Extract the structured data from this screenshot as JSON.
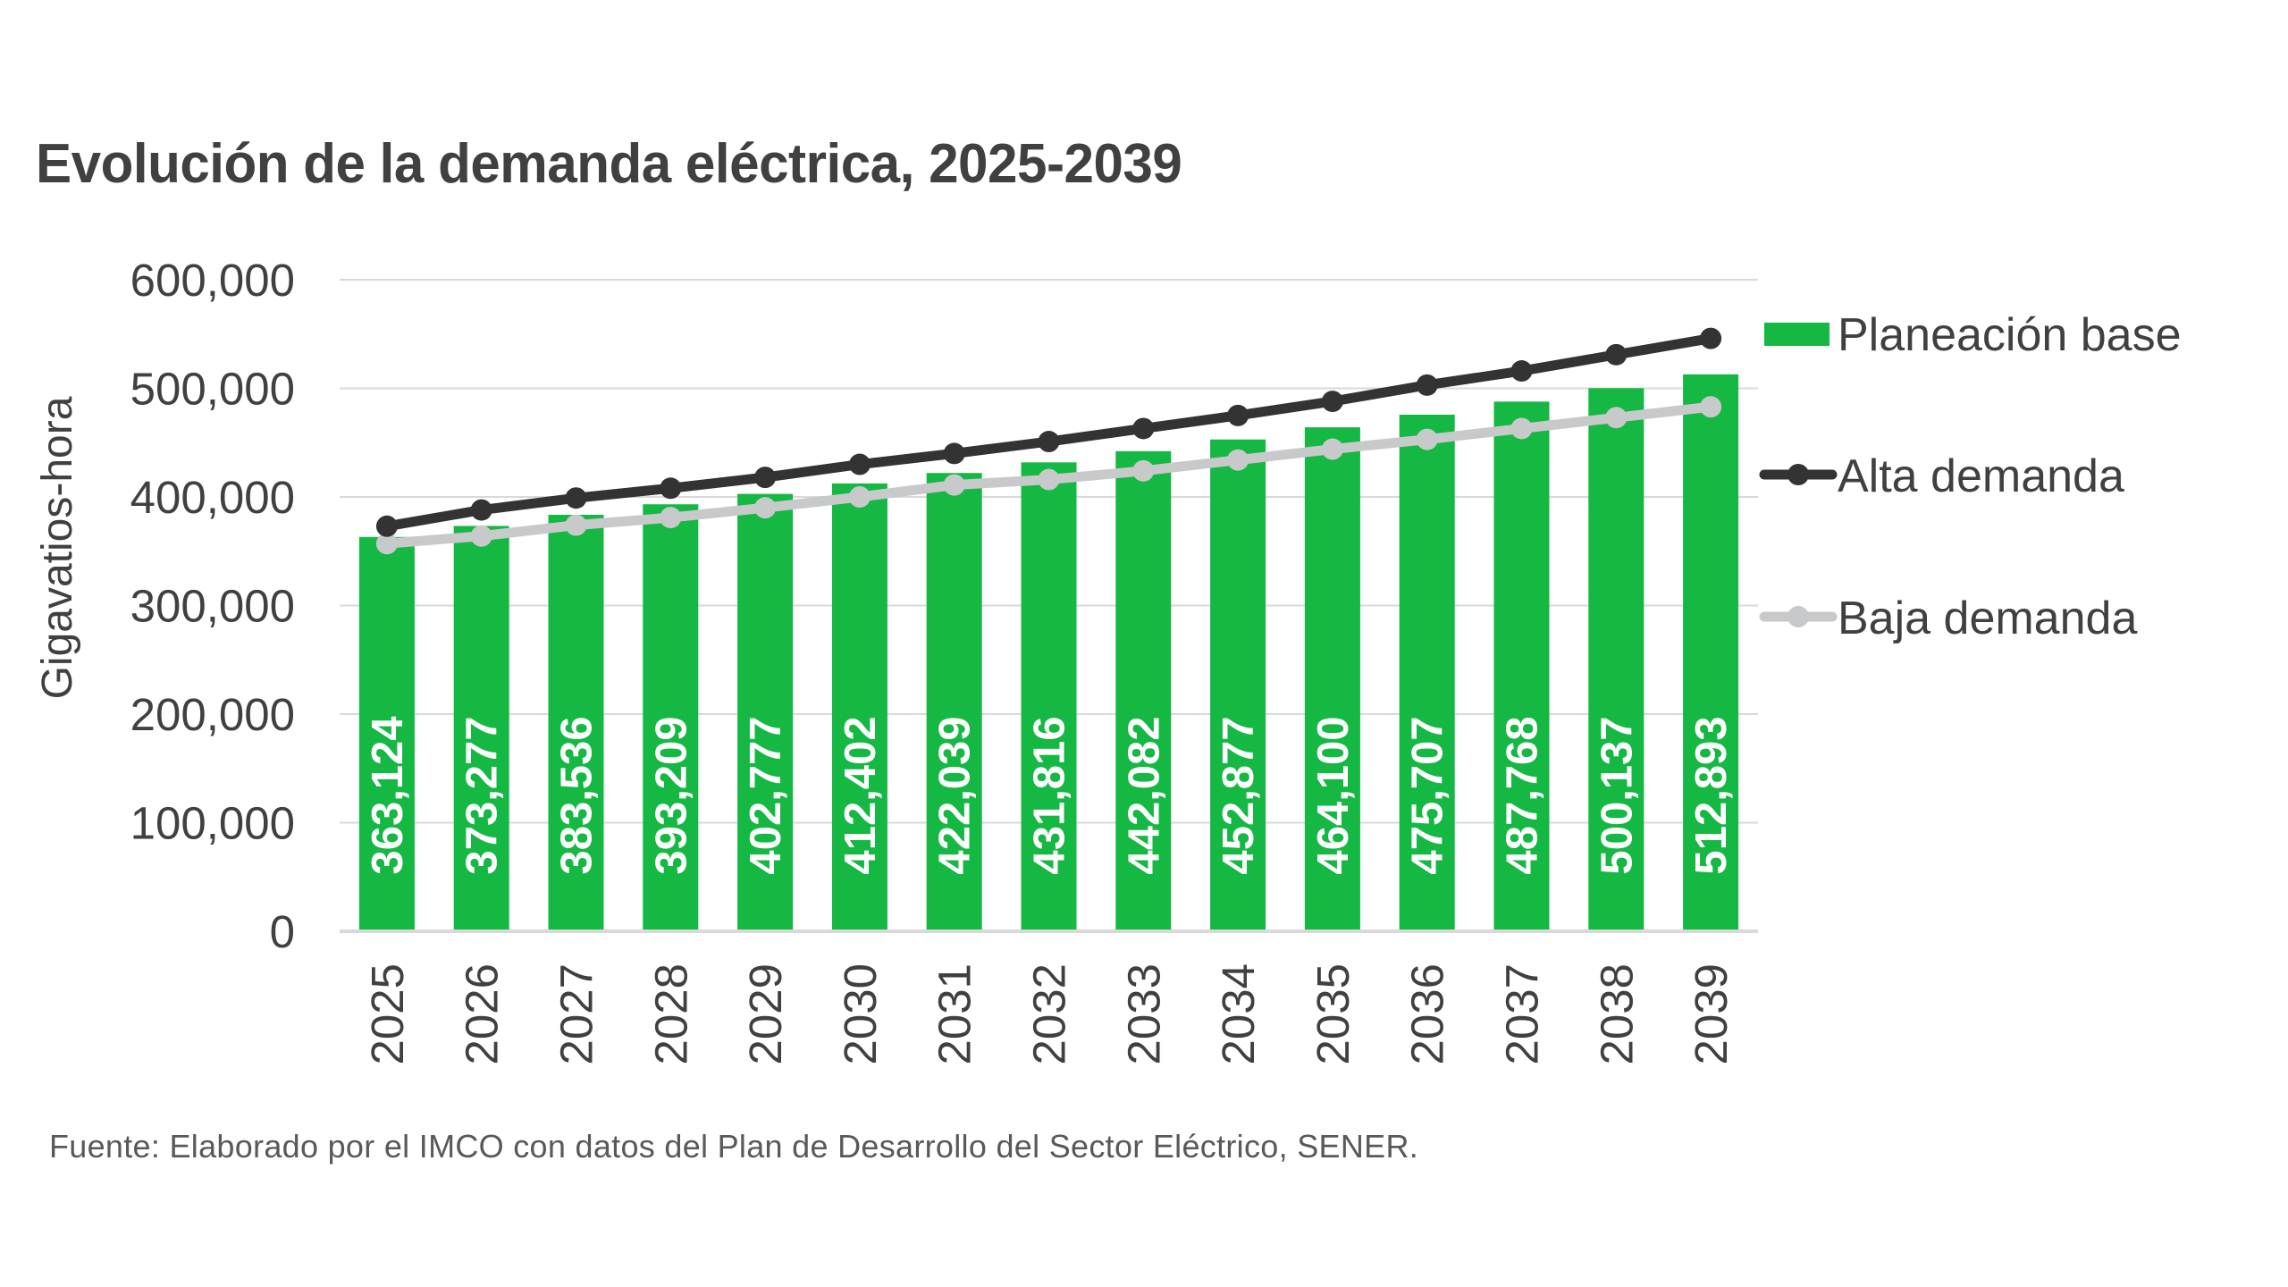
{
  "chart_data": {
    "type": "bar",
    "title": "Evolución de la demanda eléctrica, 2025-2039",
    "xlabel": "",
    "ylabel": "Gigavatios-hora",
    "ylim": [
      0,
      600000
    ],
    "yticks": [
      0,
      100000,
      200000,
      300000,
      400000,
      500000,
      600000
    ],
    "ytick_labels": [
      "0",
      "100,000",
      "200,000",
      "300,000",
      "400,000",
      "500,000",
      "600,000"
    ],
    "grid": true,
    "legend_position": "right",
    "categories": [
      "2025",
      "2026",
      "2027",
      "2028",
      "2029",
      "2030",
      "2031",
      "2032",
      "2033",
      "2034",
      "2035",
      "2036",
      "2037",
      "2038",
      "2039"
    ],
    "series": [
      {
        "name": "Planeación base",
        "type": "bar",
        "color": "#14B843",
        "values": [
          363124,
          373277,
          383536,
          393209,
          402777,
          412402,
          422039,
          431816,
          442082,
          452877,
          464100,
          475707,
          487768,
          500137,
          512893
        ],
        "data_labels": [
          "363,124",
          "373,277",
          "383,536",
          "393,209",
          "402,777",
          "412,402",
          "422,039",
          "431,816",
          "442,082",
          "452,877",
          "464,100",
          "475,707",
          "487,768",
          "500,137",
          "512,893"
        ]
      },
      {
        "name": "Alta demanda",
        "type": "line",
        "color": "#333333",
        "values": [
          373000,
          388000,
          399000,
          408000,
          418000,
          430000,
          440000,
          451000,
          463000,
          475000,
          488000,
          503000,
          516000,
          531000,
          546000
        ]
      },
      {
        "name": "Baja demanda",
        "type": "line",
        "color": "#C8C9CA",
        "values": [
          357000,
          364000,
          374000,
          381000,
          390000,
          400000,
          411000,
          416000,
          424000,
          434000,
          444000,
          453000,
          463000,
          473000,
          483000
        ]
      }
    ]
  },
  "source_note": "Fuente: Elaborado por el IMCO con datos del Plan de Desarrollo del Sector Eléctrico, SENER.",
  "colors": {
    "gridline": "#D9D9D9",
    "axis_line": "#D9D9D9",
    "text": "#404040"
  }
}
